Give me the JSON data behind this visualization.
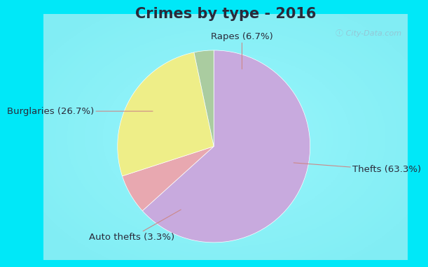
{
  "title": "Crimes by type - 2016",
  "slices": [
    {
      "label": "Thefts (63.3%)",
      "value": 63.3,
      "color": "#c8aade"
    },
    {
      "label": "Rapes (6.7%)",
      "value": 6.7,
      "color": "#e8a8b0"
    },
    {
      "label": "Burglaries (26.7%)",
      "value": 26.7,
      "color": "#eeee88"
    },
    {
      "label": "Auto thefts (3.3%)",
      "value": 3.3,
      "color": "#aacca0"
    }
  ],
  "outer_bg": "#00e8f8",
  "inner_bg": "#d8efe8",
  "title_color": "#2a2a3a",
  "title_fontsize": 15,
  "label_fontsize": 9.5,
  "watermark": "ⓘ City-Data.com",
  "arrow_color": "#cc8888",
  "label_color": "#2a2a3a"
}
